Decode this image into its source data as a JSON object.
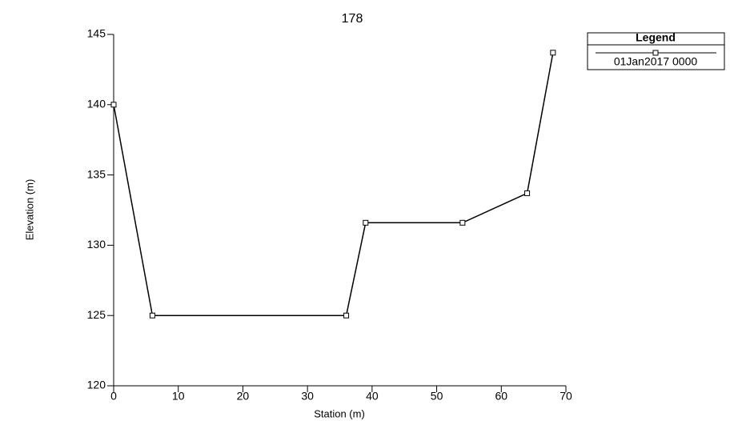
{
  "chart_data": {
    "type": "line",
    "title": "178",
    "x_label": "Station (m)",
    "y_label": "Elevation (m)",
    "legend_title": "Legend",
    "legend": "upper right",
    "marker": "square",
    "x": [
      0,
      6,
      36,
      39,
      54,
      64,
      68
    ],
    "series": [
      {
        "name": "01Jan2017 0000",
        "color": "#000000",
        "values": [
          140,
          125,
          125,
          131.6,
          131.6,
          133.7,
          143.7
        ]
      }
    ],
    "xlim": [
      0,
      70
    ],
    "ylim": [
      120,
      145
    ],
    "xticks": [
      0,
      10,
      20,
      30,
      40,
      50,
      60,
      70
    ],
    "yticks": [
      120,
      125,
      130,
      135,
      140,
      145
    ]
  }
}
